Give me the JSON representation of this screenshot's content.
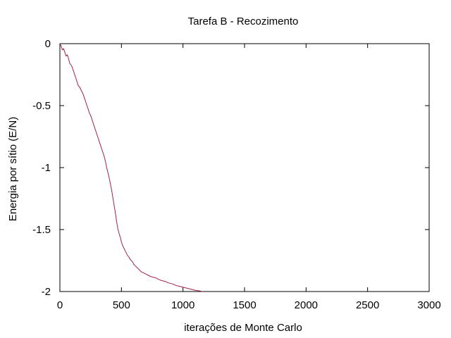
{
  "chart_data": {
    "type": "line",
    "title": "Tarefa B - Recozimento",
    "xlabel": "iterações de Monte Carlo",
    "ylabel": "Energia por sítio (E/N)",
    "xlim": [
      0,
      3000
    ],
    "ylim": [
      -2,
      0
    ],
    "xticks": [
      0,
      500,
      1000,
      1500,
      2000,
      2500,
      3000
    ],
    "xtick_labels": [
      "0",
      "500",
      "1000",
      "1500",
      "2000",
      "2500",
      "3000"
    ],
    "yticks": [
      0,
      -0.5,
      -1,
      -1.5,
      -2
    ],
    "ytick_labels": [
      "0",
      "-0.5",
      "-1",
      "-1.5",
      "-2"
    ],
    "grid": false,
    "legend": "none",
    "series": [
      {
        "color": "#a0204f",
        "x": [
          0,
          10,
          20,
          30,
          40,
          50,
          60,
          70,
          80,
          90,
          100,
          110,
          120,
          130,
          140,
          150,
          160,
          170,
          180,
          190,
          200,
          210,
          220,
          230,
          240,
          250,
          260,
          270,
          280,
          290,
          300,
          310,
          320,
          330,
          340,
          350,
          360,
          370,
          380,
          390,
          400,
          410,
          420,
          430,
          440,
          450,
          460,
          470,
          480,
          490,
          500,
          510,
          520,
          530,
          540,
          550,
          560,
          570,
          580,
          590,
          600,
          620,
          640,
          660,
          680,
          700,
          720,
          740,
          760,
          780,
          800,
          820,
          840,
          860,
          880,
          900,
          920,
          940,
          960,
          980,
          1000,
          1020,
          1040,
          1060,
          1080,
          1100,
          1120,
          1140,
          1150,
          1160
        ],
        "y": [
          0.0,
          -0.02,
          -0.05,
          -0.04,
          -0.07,
          -0.1,
          -0.09,
          -0.12,
          -0.16,
          -0.17,
          -0.19,
          -0.22,
          -0.25,
          -0.28,
          -0.31,
          -0.34,
          -0.35,
          -0.37,
          -0.39,
          -0.41,
          -0.44,
          -0.47,
          -0.5,
          -0.53,
          -0.56,
          -0.58,
          -0.61,
          -0.64,
          -0.67,
          -0.7,
          -0.73,
          -0.76,
          -0.79,
          -0.82,
          -0.85,
          -0.88,
          -0.91,
          -0.95,
          -1.0,
          -1.04,
          -1.08,
          -1.13,
          -1.18,
          -1.24,
          -1.3,
          -1.36,
          -1.43,
          -1.49,
          -1.53,
          -1.56,
          -1.6,
          -1.63,
          -1.65,
          -1.67,
          -1.69,
          -1.71,
          -1.72,
          -1.74,
          -1.75,
          -1.76,
          -1.78,
          -1.8,
          -1.82,
          -1.84,
          -1.85,
          -1.86,
          -1.87,
          -1.88,
          -1.885,
          -1.89,
          -1.9,
          -1.91,
          -1.915,
          -1.92,
          -1.93,
          -1.935,
          -1.94,
          -1.95,
          -1.955,
          -1.96,
          -1.965,
          -1.97,
          -1.975,
          -1.98,
          -1.985,
          -1.99,
          -1.993,
          -1.996,
          -1.998,
          -2.0
        ]
      }
    ]
  }
}
